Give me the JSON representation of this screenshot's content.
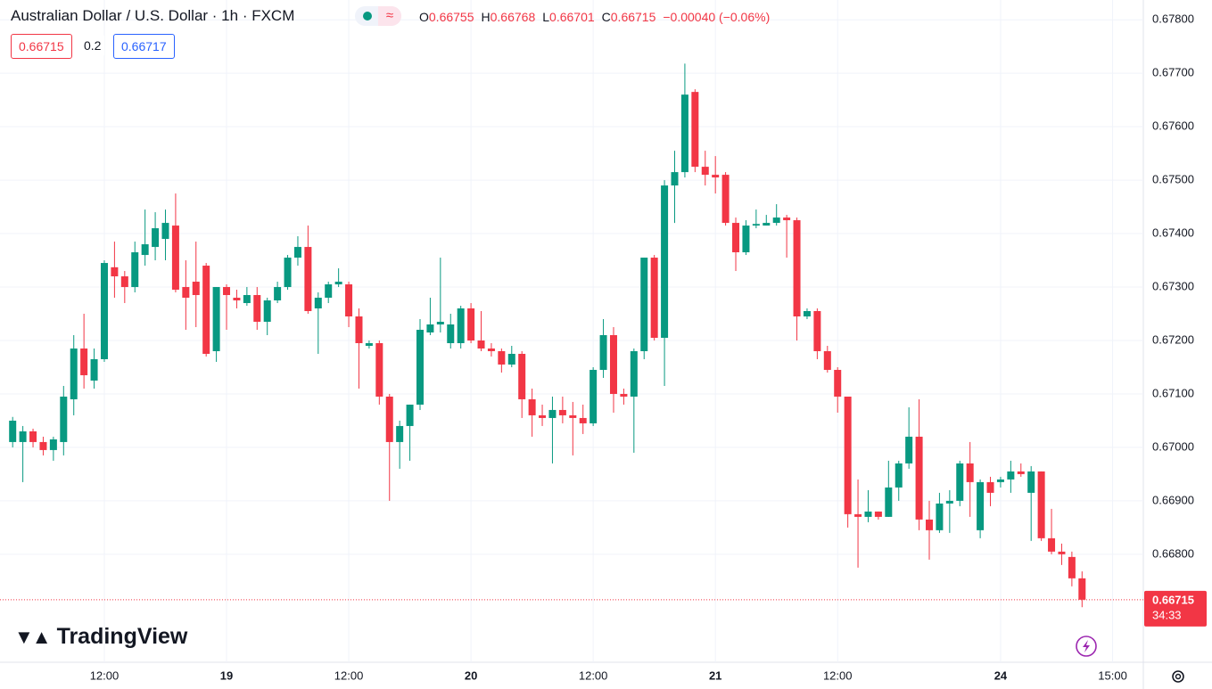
{
  "header": {
    "title": "Australian Dollar / U.S. Dollar · 1h · FXCM",
    "ohlc_labels": [
      "O",
      "H",
      "L",
      "C"
    ],
    "change": "−0.00040 (−0.06%)",
    "bid": "0.66715",
    "spread": "0.2",
    "ask": "0.66717",
    "brand": "TradingView",
    "countdown": "34:33"
  },
  "chart_data": {
    "type": "candlestick",
    "up_color": "#089981",
    "down_color": "#f23645",
    "grid": true,
    "open": [
      0.6701,
      0.6701,
      0.6703,
      0.6701,
      0.66995,
      0.6701,
      0.6709,
      0.67185,
      0.67125,
      0.67165,
      0.67337,
      0.6732,
      0.673,
      0.6736,
      0.67375,
      0.6739,
      0.67415,
      0.673,
      0.6731,
      0.6734,
      0.6718,
      0.673,
      0.6728,
      0.6727,
      0.67285,
      0.67235,
      0.67275,
      0.673,
      0.67355,
      0.67375,
      0.6726,
      0.6728,
      0.67305,
      0.67305,
      0.67245,
      0.6719,
      0.67195,
      0.67095,
      0.6701,
      0.6704,
      0.6708,
      0.67215,
      0.6723,
      0.67195,
      0.67195,
      0.6726,
      0.672,
      0.67185,
      0.6718,
      0.67155,
      0.67175,
      0.6709,
      0.6706,
      0.67055,
      0.6707,
      0.6706,
      0.67055,
      0.67045,
      0.67145,
      0.6721,
      0.671,
      0.67095,
      0.6718,
      0.67355,
      0.67205,
      0.6749,
      0.67515,
      0.67665,
      0.67525,
      0.6751,
      0.6751,
      0.6742,
      0.67365,
      0.67415,
      0.67415,
      0.6742,
      0.6743,
      0.67425,
      0.67245,
      0.67255,
      0.6718,
      0.67145,
      0.67095,
      0.66875,
      0.6687,
      0.6688,
      0.6687,
      0.66925,
      0.6697,
      0.6702,
      0.66865,
      0.66845,
      0.66895,
      0.669,
      0.6697,
      0.66845,
      0.66935,
      0.66935,
      0.6694,
      0.66955,
      0.66915,
      0.66955,
      0.6683,
      0.66805,
      0.66795,
      0.66755
    ],
    "high": [
      0.67057,
      0.6704,
      0.67035,
      0.6702,
      0.6702,
      0.67115,
      0.6721,
      0.6725,
      0.67185,
      0.6735,
      0.67385,
      0.6733,
      0.67385,
      0.67445,
      0.6744,
      0.67445,
      0.67475,
      0.6735,
      0.67385,
      0.67345,
      0.673,
      0.67305,
      0.67295,
      0.673,
      0.673,
      0.6728,
      0.6731,
      0.6736,
      0.67395,
      0.67415,
      0.6729,
      0.6731,
      0.67335,
      0.6731,
      0.6726,
      0.672,
      0.672,
      0.671,
      0.6705,
      0.6708,
      0.6724,
      0.6728,
      0.67355,
      0.6725,
      0.67265,
      0.6727,
      0.67255,
      0.67195,
      0.67185,
      0.6719,
      0.6718,
      0.6711,
      0.6708,
      0.67095,
      0.67095,
      0.67085,
      0.6708,
      0.6715,
      0.6724,
      0.67225,
      0.6711,
      0.67185,
      0.67355,
      0.6736,
      0.675,
      0.67555,
      0.67718,
      0.6767,
      0.67555,
      0.67545,
      0.67515,
      0.6743,
      0.67425,
      0.67445,
      0.67435,
      0.67455,
      0.67435,
      0.6743,
      0.6726,
      0.6726,
      0.6719,
      0.6715,
      0.67095,
      0.6694,
      0.6692,
      0.6688,
      0.66975,
      0.66975,
      0.67075,
      0.6709,
      0.669,
      0.66915,
      0.6692,
      0.66975,
      0.6701,
      0.6694,
      0.66945,
      0.66945,
      0.66975,
      0.6697,
      0.66965,
      0.66955,
      0.66885,
      0.6682,
      0.66805,
      0.66768
    ],
    "low": [
      0.67,
      0.66935,
      0.67,
      0.66985,
      0.66975,
      0.66985,
      0.6706,
      0.6711,
      0.6711,
      0.6716,
      0.6728,
      0.6727,
      0.6729,
      0.6734,
      0.6735,
      0.6735,
      0.6729,
      0.6722,
      0.67225,
      0.6717,
      0.6716,
      0.6722,
      0.6726,
      0.67265,
      0.6722,
      0.6721,
      0.6727,
      0.67295,
      0.6734,
      0.6725,
      0.67175,
      0.6727,
      0.673,
      0.67225,
      0.6711,
      0.67185,
      0.6708,
      0.669,
      0.6696,
      0.66975,
      0.6707,
      0.6721,
      0.67215,
      0.67185,
      0.67185,
      0.67195,
      0.6718,
      0.6717,
      0.6714,
      0.6715,
      0.67055,
      0.6702,
      0.6704,
      0.6697,
      0.67045,
      0.66985,
      0.67025,
      0.6704,
      0.6713,
      0.67065,
      0.6708,
      0.6699,
      0.67165,
      0.672,
      0.67115,
      0.6742,
      0.67505,
      0.67515,
      0.6749,
      0.67475,
      0.67415,
      0.6733,
      0.6736,
      0.6741,
      0.67415,
      0.67415,
      0.67355,
      0.672,
      0.6724,
      0.67165,
      0.6714,
      0.67065,
      0.6685,
      0.66775,
      0.6686,
      0.66865,
      0.6687,
      0.669,
      0.6696,
      0.66845,
      0.6679,
      0.6684,
      0.6684,
      0.6689,
      0.6687,
      0.6683,
      0.6689,
      0.66925,
      0.66915,
      0.66945,
      0.66825,
      0.66825,
      0.668,
      0.6678,
      0.6674,
      0.66701
    ],
    "close": [
      0.6705,
      0.6703,
      0.6701,
      0.66995,
      0.67015,
      0.67095,
      0.67185,
      0.67135,
      0.67165,
      0.67345,
      0.6732,
      0.673,
      0.67365,
      0.6738,
      0.6741,
      0.6742,
      0.67295,
      0.6728,
      0.67285,
      0.67175,
      0.673,
      0.67285,
      0.67275,
      0.67285,
      0.67235,
      0.67275,
      0.673,
      0.67355,
      0.67375,
      0.67255,
      0.6728,
      0.67305,
      0.6731,
      0.67245,
      0.67195,
      0.67195,
      0.67095,
      0.6701,
      0.6704,
      0.6708,
      0.6722,
      0.6723,
      0.67235,
      0.6723,
      0.6726,
      0.672,
      0.67185,
      0.6718,
      0.67155,
      0.67175,
      0.6709,
      0.6706,
      0.67055,
      0.6707,
      0.6706,
      0.67055,
      0.67045,
      0.67145,
      0.6721,
      0.671,
      0.67095,
      0.6718,
      0.67355,
      0.67205,
      0.6749,
      0.67515,
      0.6766,
      0.67525,
      0.6751,
      0.67505,
      0.6742,
      0.67365,
      0.67415,
      0.67418,
      0.6742,
      0.6743,
      0.67425,
      0.67245,
      0.67255,
      0.6718,
      0.67145,
      0.67095,
      0.66875,
      0.6687,
      0.6688,
      0.6687,
      0.66925,
      0.6697,
      0.6702,
      0.66865,
      0.66845,
      0.66895,
      0.669,
      0.6697,
      0.66935,
      0.66935,
      0.66915,
      0.6694,
      0.66955,
      0.6695,
      0.66955,
      0.6683,
      0.66805,
      0.668,
      0.66755,
      0.66715
    ],
    "xticks": [
      {
        "value": 9,
        "label": "12:00"
      },
      {
        "value": 21,
        "label": "19"
      },
      {
        "value": 33,
        "label": "12:00"
      },
      {
        "value": 45,
        "label": "20"
      },
      {
        "value": 57,
        "label": "12:00"
      },
      {
        "value": 69,
        "label": "21"
      },
      {
        "value": 81,
        "label": "12:00"
      },
      {
        "value": 97,
        "label": "24"
      },
      {
        "value": 108,
        "label": "15:00"
      }
    ],
    "ylim": [
      0.66598,
      0.67837
    ],
    "yticks": [
      {
        "value": 0.668,
        "label": "0.66800"
      },
      {
        "value": 0.669,
        "label": "0.66900"
      },
      {
        "value": 0.67,
        "label": "0.67000"
      },
      {
        "value": 0.671,
        "label": "0.67100"
      },
      {
        "value": 0.672,
        "label": "0.67200"
      },
      {
        "value": 0.673,
        "label": "0.67300"
      },
      {
        "value": 0.674,
        "label": "0.67400"
      },
      {
        "value": 0.675,
        "label": "0.67500"
      },
      {
        "value": 0.676,
        "label": "0.67600"
      },
      {
        "value": 0.677,
        "label": "0.67700"
      },
      {
        "value": 0.678,
        "label": "0.67800"
      }
    ]
  }
}
